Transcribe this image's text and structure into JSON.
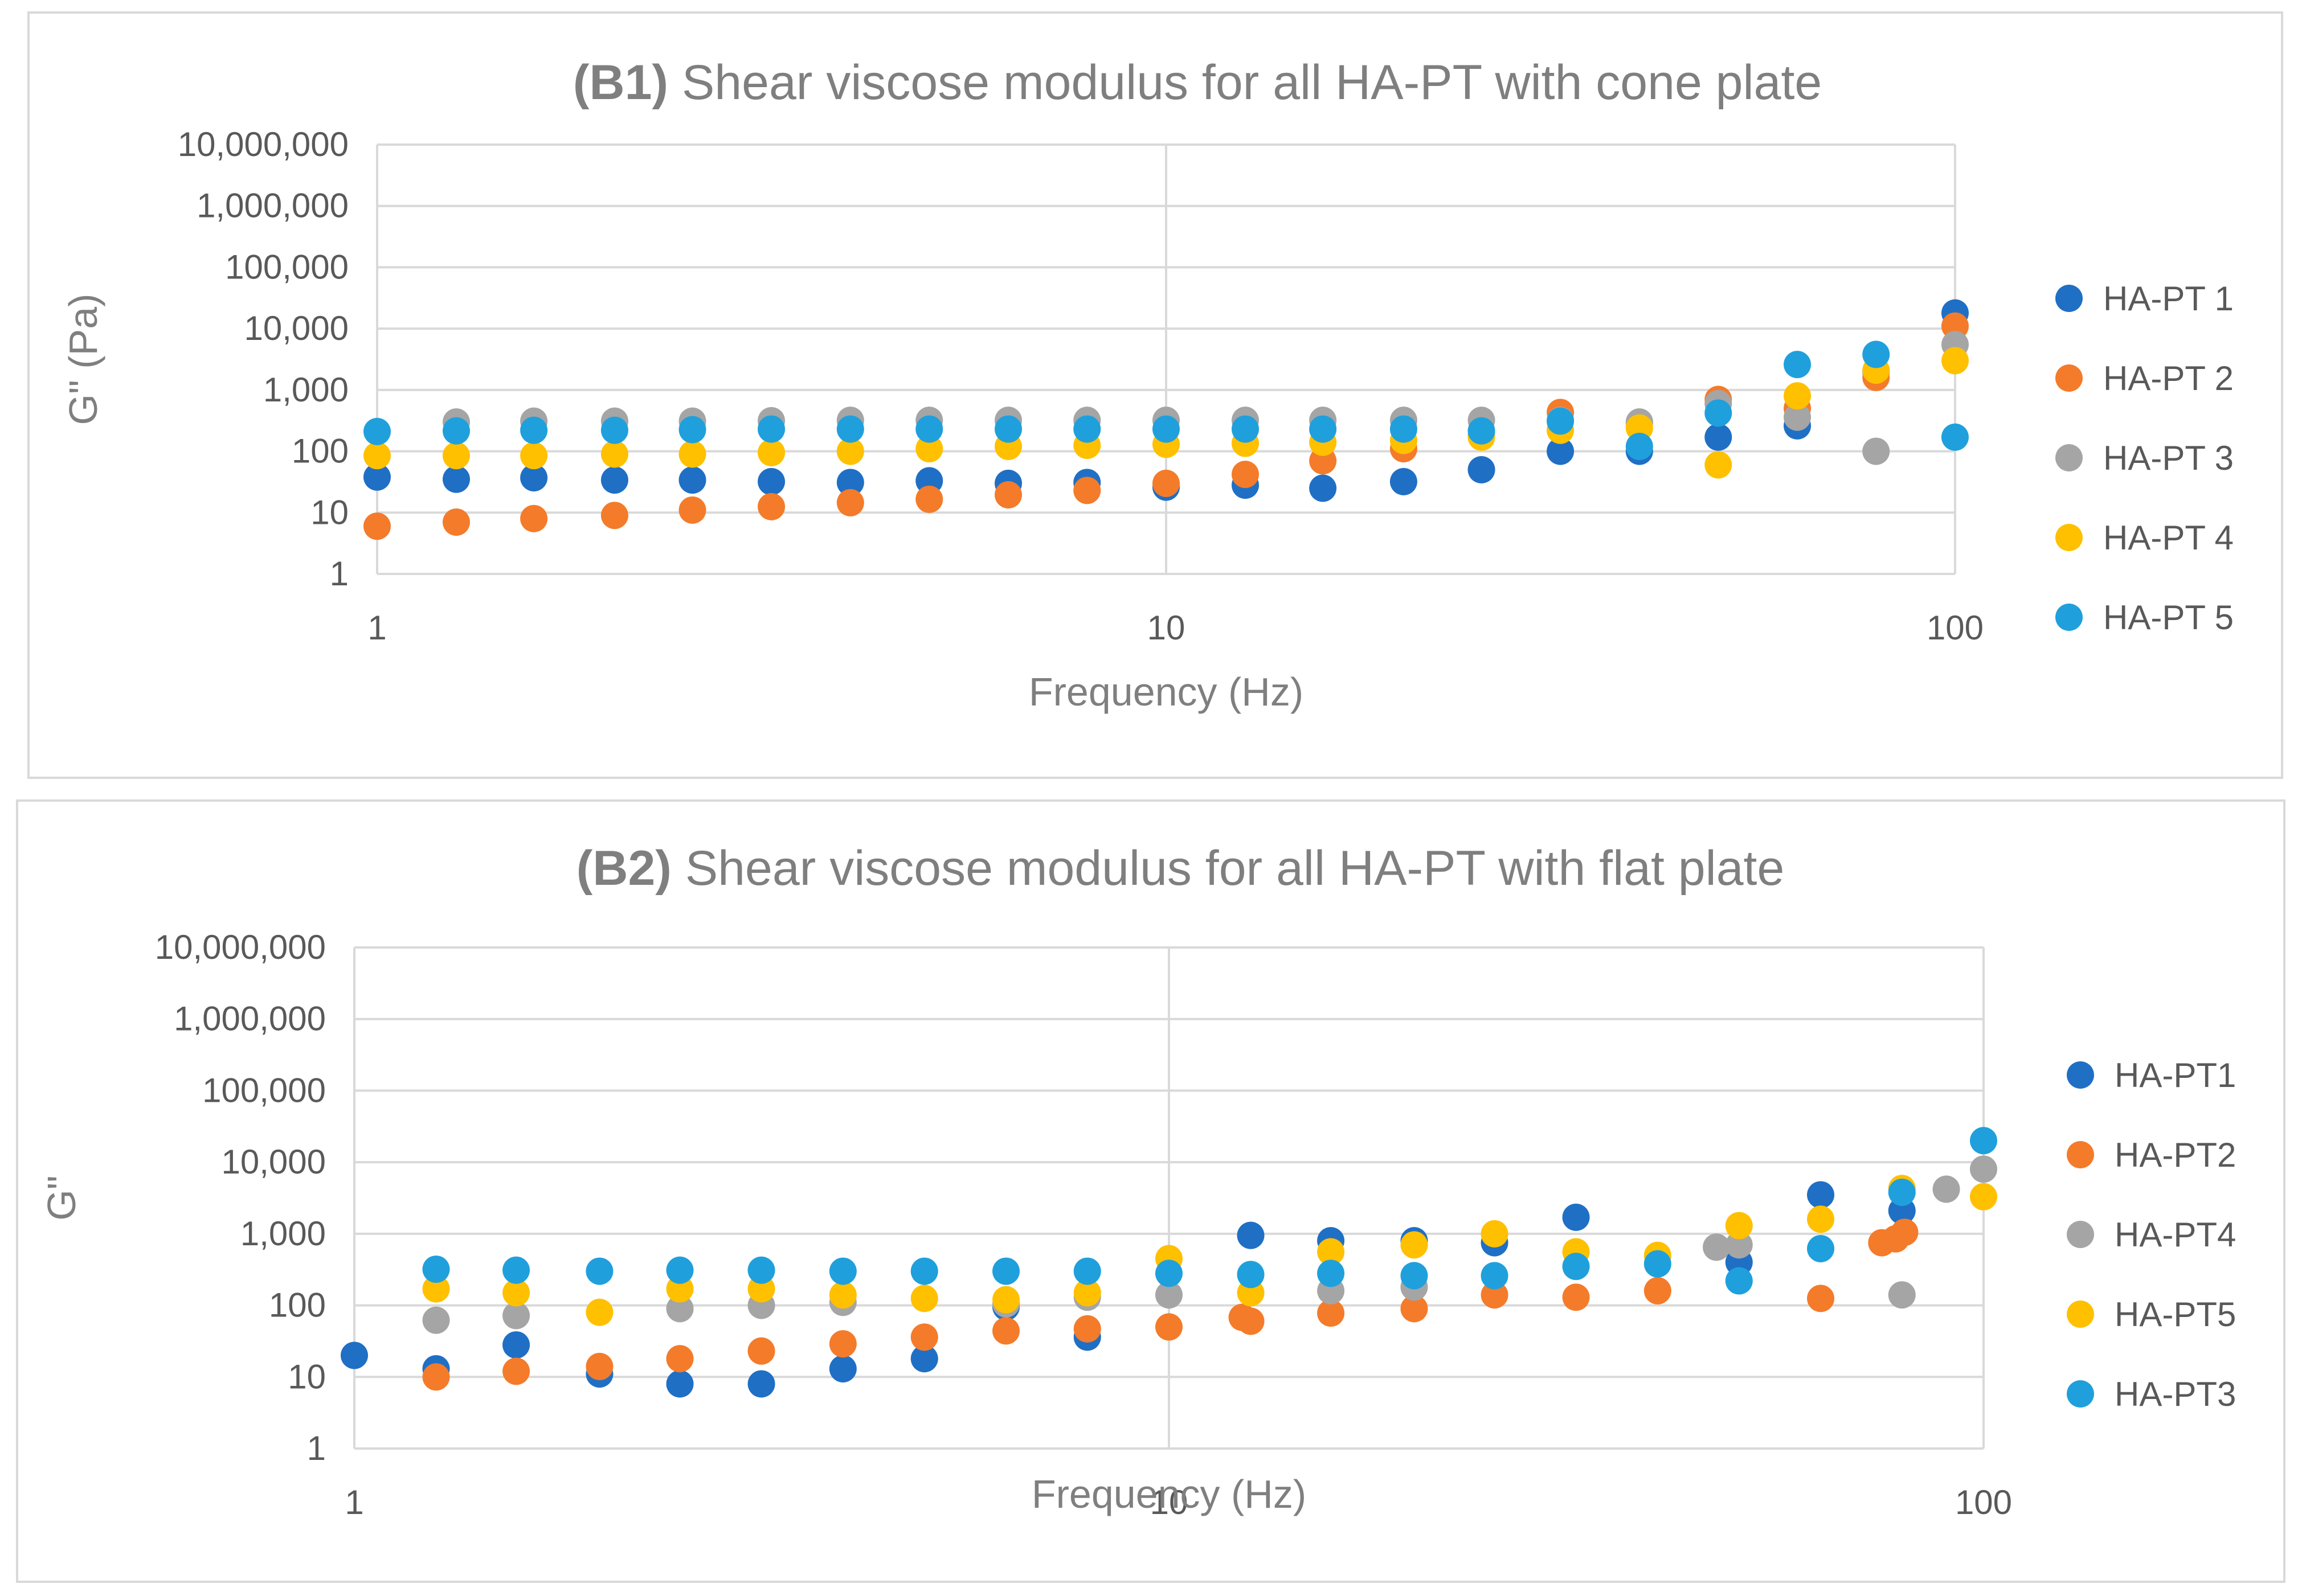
{
  "chart_data": [
    {
      "type": "scatter",
      "title_prefix": "(B1)",
      "title": "Shear viscose modulus for all HA-PT with cone plate",
      "xlabel": "Frequency (Hz)",
      "ylabel": "G\" (Pa)",
      "x_scale": "log",
      "y_scale": "log",
      "xlim": [
        1,
        100
      ],
      "ylim": [
        1,
        10000000
      ],
      "x_ticks": [
        "1",
        "10",
        "100"
      ],
      "y_ticks": [
        "1",
        "10",
        "100",
        "1,000",
        "10,000",
        "100,000",
        "1,000,000",
        "10,000,000"
      ],
      "grid": true,
      "legend_position": "right",
      "series": [
        {
          "name": "HA-PT 1",
          "color": "#1f6fc5",
          "x": [
            1,
            1.26,
            1.58,
            2,
            2.51,
            3.16,
            3.98,
            5.01,
            6.31,
            7.94,
            10,
            12.6,
            15.8,
            20,
            25.1,
            31.6,
            39.8,
            50.1,
            63.1,
            79.4,
            100
          ],
          "y": [
            38,
            35,
            37,
            34,
            34,
            32,
            31,
            33,
            30,
            31,
            26,
            28,
            25,
            32,
            50,
            100,
            100,
            170,
            260,
            2000,
            18000
          ]
        },
        {
          "name": "HA-PT 2",
          "color": "#f47b2a",
          "x": [
            1,
            1.26,
            1.58,
            2,
            2.51,
            3.16,
            3.98,
            5.01,
            6.31,
            7.94,
            10,
            12.6,
            15.8,
            20,
            25.1,
            31.6,
            39.8,
            50.1,
            63.1,
            79.4,
            100
          ],
          "y": [
            6,
            7,
            8,
            9,
            11,
            12.5,
            14.5,
            16.5,
            19.5,
            23,
            30,
            42,
            70,
            110,
            180,
            430,
            290,
            700,
            500,
            1600,
            11000
          ]
        },
        {
          "name": "HA-PT 3",
          "color": "#a5a5a5",
          "x": [
            1.26,
            1.58,
            2,
            2.51,
            3.16,
            3.98,
            5.01,
            6.31,
            7.94,
            10,
            12.6,
            15.8,
            20,
            25.1,
            31.6,
            39.8,
            50.1,
            63.1,
            79.4,
            100
          ],
          "y": [
            300,
            310,
            310,
            310,
            315,
            320,
            320,
            320,
            320,
            320,
            320,
            320,
            320,
            320,
            320,
            300,
            600,
            360,
            100,
            5500
          ]
        },
        {
          "name": "HA-PT 4",
          "color": "#ffc000",
          "x": [
            1,
            1.26,
            1.58,
            2,
            2.51,
            3.16,
            3.98,
            5.01,
            6.31,
            7.94,
            10,
            12.6,
            15.8,
            20,
            25.1,
            31.6,
            39.8,
            50.1,
            63.1,
            79.4,
            100
          ],
          "y": [
            85,
            85,
            85,
            90,
            90,
            95,
            100,
            110,
            120,
            125,
            130,
            135,
            140,
            150,
            170,
            220,
            240,
            60,
            800,
            2100,
            3000
          ]
        },
        {
          "name": "HA-PT 5",
          "color": "#1fa0dc",
          "x": [
            1,
            1.26,
            1.58,
            2,
            2.51,
            3.16,
            3.98,
            5.01,
            6.31,
            7.94,
            10,
            12.6,
            15.8,
            20,
            25.1,
            31.6,
            39.8,
            50.1,
            63.1,
            79.4,
            100
          ],
          "y": [
            210,
            215,
            220,
            220,
            225,
            230,
            230,
            230,
            230,
            230,
            230,
            230,
            230,
            230,
            215,
            310,
            120,
            420,
            2600,
            3800,
            170
          ]
        }
      ]
    },
    {
      "type": "scatter",
      "title_prefix": "(B2)",
      "title": "Shear viscose modulus for all HA-PT with flat plate",
      "xlabel": "Frequency (Hz)",
      "ylabel": "G\"",
      "x_scale": "log",
      "y_scale": "log",
      "xlim": [
        1,
        100
      ],
      "ylim": [
        1,
        10000000
      ],
      "x_ticks": [
        "1",
        "10",
        "100"
      ],
      "y_ticks": [
        "1",
        "10",
        "100",
        "1,000",
        "10,000",
        "100,000",
        "1,000,000",
        "10,000,000"
      ],
      "grid": true,
      "legend_position": "right",
      "series": [
        {
          "name": "HA-PT1",
          "color": "#1f6fc5",
          "x": [
            1,
            1.26,
            1.58,
            2,
            2.51,
            3.16,
            3.98,
            5.01,
            6.31,
            7.94,
            12.6,
            15.8,
            20,
            25.1,
            31.6,
            50.1,
            63.1,
            79.4
          ],
          "y": [
            20,
            13,
            28,
            11,
            8,
            8,
            13,
            18,
            95,
            36,
            950,
            800,
            800,
            750,
            1700,
            400,
            3500,
            2100
          ]
        },
        {
          "name": "HA-PT2",
          "color": "#f47b2a",
          "x": [
            1.26,
            1.58,
            2,
            2.51,
            3.16,
            3.98,
            5.01,
            6.31,
            7.94,
            10,
            12.3,
            12.6,
            15.8,
            20,
            25.1,
            31.6,
            39.8,
            63.1,
            75,
            78,
            80
          ],
          "y": [
            10,
            12,
            14,
            18,
            23,
            29,
            36,
            44,
            47,
            50,
            68,
            60,
            78,
            90,
            140,
            130,
            160,
            125,
            750,
            850,
            1050
          ]
        },
        {
          "name": "HA-PT4",
          "color": "#a5a5a5",
          "x": [
            1.26,
            1.58,
            2.51,
            3.16,
            3.98,
            6.31,
            7.94,
            10,
            15.8,
            20,
            47,
            50.1,
            79.4,
            90,
            100
          ],
          "y": [
            62,
            72,
            90,
            100,
            110,
            105,
            130,
            140,
            160,
            180,
            650,
            700,
            140,
            4200,
            8000
          ]
        },
        {
          "name": "HA-PT5",
          "color": "#ffc000",
          "x": [
            1.26,
            1.58,
            2,
            2.51,
            3.16,
            3.98,
            5.01,
            6.31,
            7.94,
            10,
            12.6,
            15.8,
            20,
            25.1,
            31.6,
            39.8,
            50.1,
            63.1,
            79.4,
            100
          ],
          "y": [
            170,
            150,
            80,
            170,
            170,
            140,
            125,
            120,
            150,
            450,
            150,
            560,
            700,
            1000,
            560,
            500,
            1300,
            1600,
            4300,
            3300
          ]
        },
        {
          "name": "HA-PT3",
          "color": "#1fa0dc",
          "x": [
            1.26,
            1.58,
            2,
            2.51,
            3.16,
            3.98,
            5.01,
            6.31,
            7.94,
            10,
            12.6,
            15.8,
            20,
            25.1,
            31.6,
            39.8,
            50.1,
            63.1,
            79.4,
            100
          ],
          "y": [
            320,
            310,
            300,
            310,
            310,
            300,
            300,
            300,
            300,
            280,
            270,
            280,
            260,
            260,
            350,
            380,
            220,
            620,
            3800,
            20000
          ]
        }
      ]
    }
  ]
}
